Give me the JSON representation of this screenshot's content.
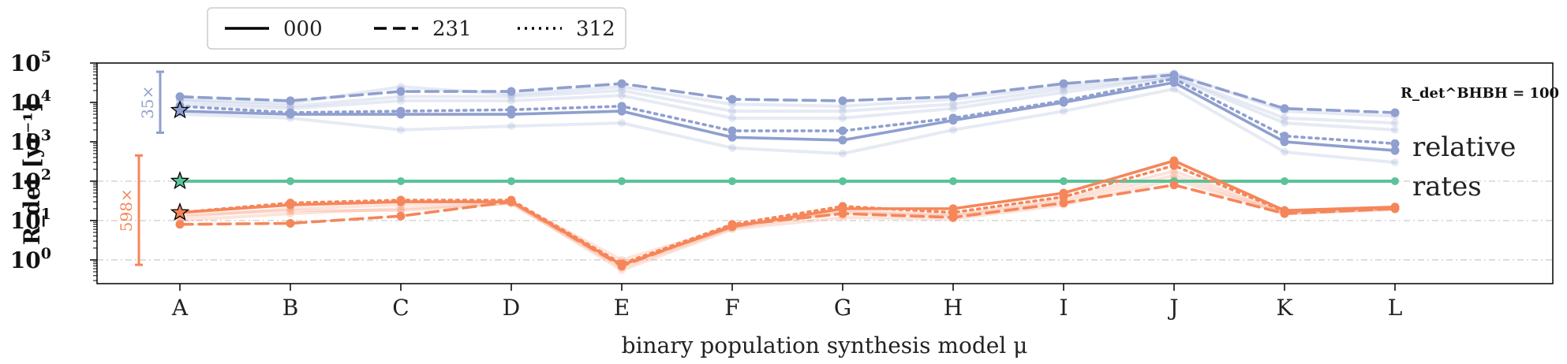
{
  "colors": {
    "bhbh": "#8f9fcf",
    "bhns": "#f5865a",
    "nsns": "#5cc29a",
    "grid": "#c8c8c8",
    "axis": "#000000"
  },
  "legend": {
    "items": [
      {
        "label": "000",
        "style": "solid"
      },
      {
        "label": "231",
        "style": "dashed"
      },
      {
        "label": "312",
        "style": "dotted"
      }
    ]
  },
  "chart_data": {
    "type": "line",
    "xlabel": "binary population synthesis model μ",
    "ylabel": "R_det [yr⁻¹]",
    "categories": [
      "A",
      "B",
      "C",
      "D",
      "E",
      "F",
      "G",
      "H",
      "I",
      "J",
      "K",
      "L"
    ],
    "yscale": "log",
    "ylim": [
      0.25,
      100000
    ],
    "yticks": [
      1,
      10,
      100,
      1000,
      10000,
      100000
    ],
    "ytick_labels": [
      "10^0",
      "10^1",
      "10^2",
      "10^3",
      "10^4",
      "10^5"
    ],
    "reference_lines": [
      1,
      10,
      100
    ],
    "series": [
      {
        "name": "000",
        "group": "BHBH",
        "style": "solid",
        "values": [
          6000,
          5000,
          5000,
          5000,
          6000,
          1300,
          1100,
          3500,
          10000,
          32000,
          1000,
          600
        ]
      },
      {
        "name": "231",
        "group": "BHBH",
        "style": "dashed",
        "values": [
          14000,
          11000,
          19000,
          19000,
          30000,
          12000,
          11000,
          14000,
          30000,
          50000,
          7000,
          5500
        ]
      },
      {
        "name": "312",
        "group": "BHBH",
        "style": "dotted",
        "values": [
          8000,
          5500,
          6000,
          6500,
          8000,
          1900,
          1900,
          4000,
          11000,
          40000,
          1400,
          900
        ]
      },
      {
        "name": "000",
        "group": "BHNS",
        "style": "solid",
        "values": [
          16,
          25,
          30,
          30,
          0.75,
          7,
          20,
          20,
          50,
          330,
          18,
          22
        ]
      },
      {
        "name": "231",
        "group": "BHNS",
        "style": "dashed",
        "values": [
          8,
          8.5,
          13,
          30,
          0.7,
          7.5,
          15,
          12,
          28,
          80,
          15,
          20
        ]
      },
      {
        "name": "312",
        "group": "BHNS",
        "style": "dotted",
        "values": [
          16,
          28,
          33,
          33,
          0.8,
          8,
          23,
          16,
          40,
          250,
          17,
          21
        ]
      },
      {
        "name": "",
        "group": "BHBH faint",
        "style": "faint",
        "values": [
          11000,
          8000,
          14000,
          14000,
          20000,
          6000,
          6000,
          9000,
          22000,
          45000,
          4000,
          3000
        ]
      },
      {
        "name": "",
        "group": "BHBH faint",
        "style": "faint",
        "values": [
          9000,
          7000,
          11000,
          11000,
          15000,
          4000,
          4000,
          7000,
          18000,
          42000,
          3000,
          2000
        ]
      },
      {
        "name": "",
        "group": "BHBH faint",
        "style": "faint",
        "values": [
          5000,
          4000,
          2000,
          2500,
          3000,
          700,
          500,
          2000,
          6000,
          22000,
          550,
          300
        ]
      },
      {
        "name": "",
        "group": "BHBH faint",
        "style": "faint",
        "values": [
          12000,
          9500,
          25000,
          16000,
          25000,
          9000,
          8000,
          12000,
          26000,
          55000,
          6000,
          4500
        ]
      },
      {
        "name": "",
        "group": "BHNS faint",
        "style": "faint",
        "values": [
          10,
          15,
          20,
          28,
          0.55,
          6,
          12,
          11,
          25,
          110,
          15,
          19
        ]
      },
      {
        "name": "",
        "group": "BHNS faint",
        "style": "faint",
        "values": [
          12,
          20,
          25,
          30,
          1.0,
          7,
          18,
          14,
          35,
          180,
          16,
          20
        ]
      },
      {
        "name": "",
        "group": "BHNS faint",
        "style": "faint",
        "values": [
          14,
          18,
          18,
          27,
          0.65,
          6.5,
          16,
          13,
          30,
          140,
          15,
          20
        ]
      }
    ],
    "nsns_line": {
      "values": [
        100,
        100,
        100,
        100,
        100,
        100,
        100,
        100,
        100,
        100,
        100,
        100
      ]
    },
    "stars": [
      {
        "category": "A",
        "value": 6300,
        "color": "#8f9fcf"
      },
      {
        "category": "A",
        "value": 100,
        "color": "#5cc29a"
      },
      {
        "category": "A",
        "value": 16,
        "color": "#f5865a"
      }
    ],
    "range_bars": [
      {
        "label": "35×",
        "color": "#8f9fcf",
        "low": 1700,
        "high": 60000
      },
      {
        "label": "598×",
        "color": "#f5865a",
        "low": 0.75,
        "high": 450
      }
    ],
    "annotations": {
      "fixed_rate": "R_det^BHBH = 100",
      "relative_line1": "relative",
      "relative_line2": "rates"
    }
  }
}
